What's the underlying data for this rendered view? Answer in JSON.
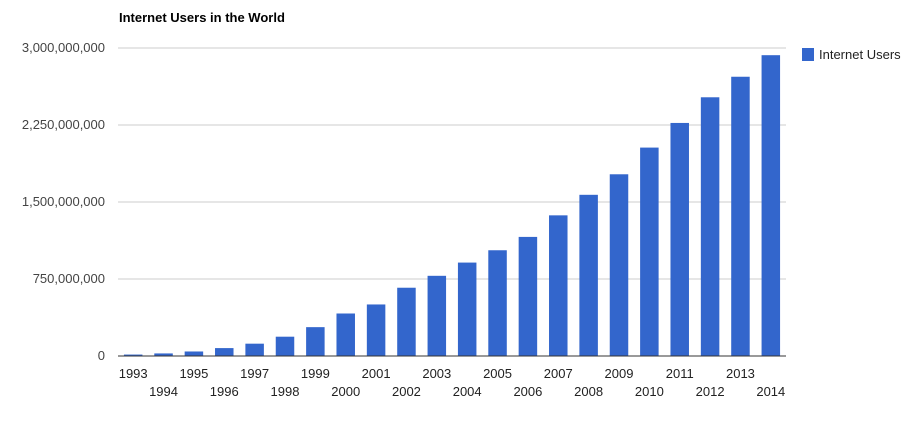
{
  "chart_data": {
    "type": "bar",
    "title": "Internet Users in the World",
    "xlabel": "",
    "ylabel": "",
    "categories": [
      "1993",
      "1994",
      "1995",
      "1996",
      "1997",
      "1998",
      "1999",
      "2000",
      "2001",
      "2002",
      "2003",
      "2004",
      "2005",
      "2006",
      "2007",
      "2008",
      "2009",
      "2010",
      "2011",
      "2012",
      "2013",
      "2014"
    ],
    "series": [
      {
        "name": "Internet Users",
        "color": "#3366cc",
        "values": [
          14000000,
          25000000,
          44000000,
          77000000,
          120000000,
          188000000,
          281000000,
          414000000,
          502000000,
          665000000,
          781000000,
          910000000,
          1030000000,
          1160000000,
          1370000000,
          1570000000,
          1770000000,
          2030000000,
          2270000000,
          2520000000,
          2720000000,
          2930000000
        ]
      }
    ],
    "yticks": [
      "0",
      "750,000,000",
      "1,500,000,000",
      "2,250,000,000",
      "3,000,000,000"
    ],
    "ytick_values": [
      0,
      750000000,
      1500000000,
      2250000000,
      3000000000
    ],
    "ylim": [
      0,
      3000000000
    ],
    "grid": true,
    "legend_position": "right"
  }
}
